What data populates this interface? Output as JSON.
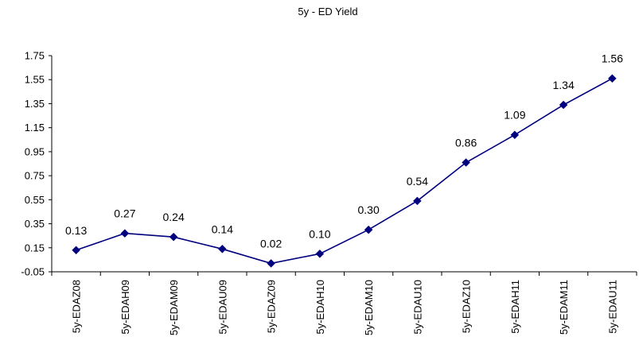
{
  "chart_data": {
    "type": "line",
    "title": "5y - ED Yield",
    "xlabel": "",
    "ylabel": "",
    "categories": [
      "5y-EDAZ08",
      "5y-EDAH09",
      "5y-EDAM09",
      "5y-EDAU09",
      "5y-EDAZ09",
      "5y-EDAH10",
      "5y-EDAM10",
      "5y-EDAU10",
      "5y-EDAZ10",
      "5y-EDAH11",
      "5y-EDAM11",
      "5y-EDAU11"
    ],
    "values": [
      0.13,
      0.27,
      0.24,
      0.14,
      0.02,
      0.1,
      0.3,
      0.54,
      0.86,
      1.09,
      1.34,
      1.56
    ],
    "data_labels": [
      "0.13",
      "0.27",
      "0.24",
      "0.14",
      "0.02",
      "0.10",
      "0.30",
      "0.54",
      "0.86",
      "1.09",
      "1.34",
      "1.56"
    ],
    "y_ticks": [
      "1.75",
      "1.55",
      "1.35",
      "1.15",
      "0.95",
      "0.75",
      "0.55",
      "0.35",
      "0.15",
      "-0.05"
    ],
    "ylim": [
      -0.05,
      1.75
    ],
    "grid": false,
    "legend": "none",
    "marker": "diamond",
    "colors": {
      "series": "#00007f",
      "axis": "#000000"
    }
  }
}
